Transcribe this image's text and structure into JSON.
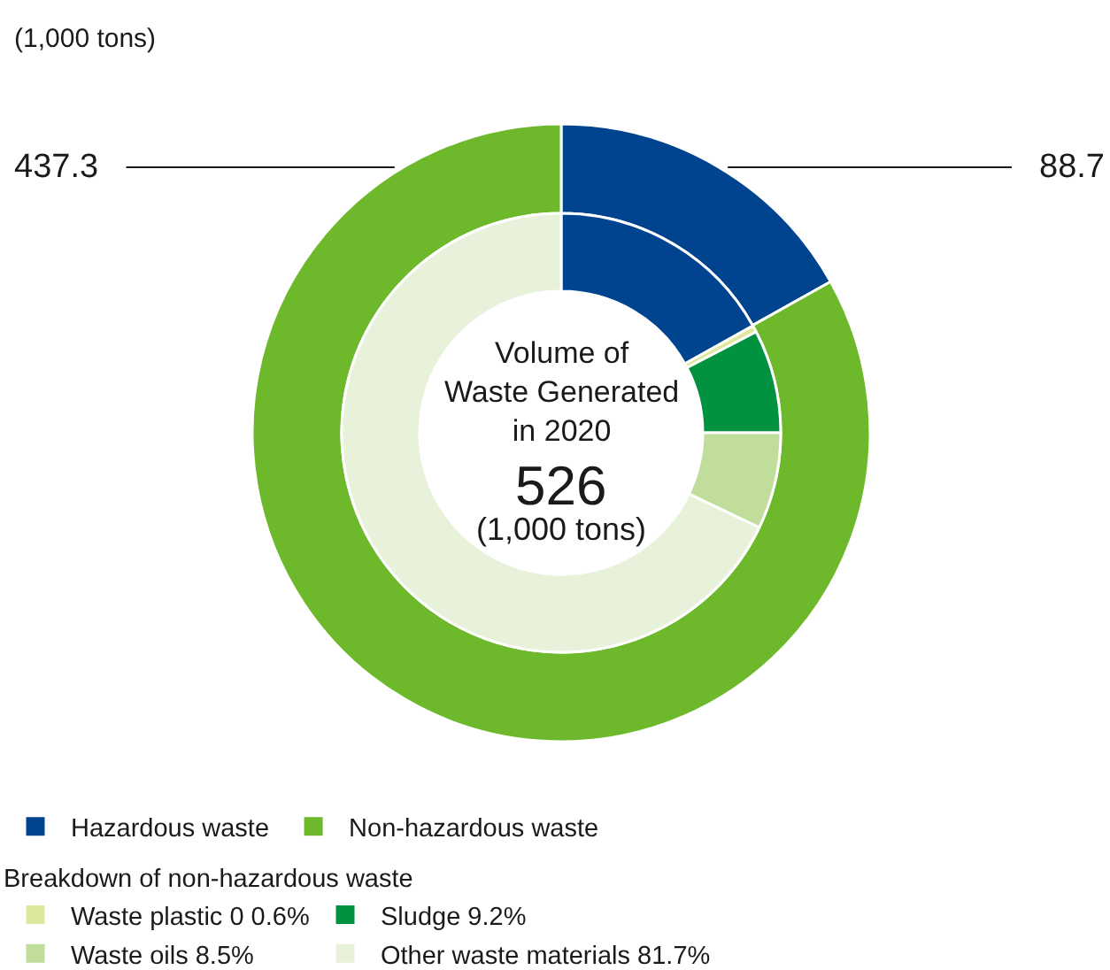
{
  "chart_data": {
    "type": "donut",
    "title": "(1,000 tons)",
    "categories": [
      "Hazardous waste",
      "Non-hazardous waste",
      "Waste plastic 0 0.6%",
      "Sludge 9.2%",
      "Waste oils 8.5%",
      "Other waste materials 81.7%"
    ],
    "colors": [
      "#00438e",
      "#6eb92b",
      "#dde89c",
      "#00923f",
      "#c1dd9b",
      "#e8f2db"
    ],
    "series": [
      {
        "values": [
          88.7,
          437.3,
          null,
          null,
          null,
          null
        ],
        "value_labels": [
          "88.7",
          "437.3",
          null,
          null,
          null,
          null
        ]
      },
      {
        "values": [
          16.9,
          null,
          0.5,
          7.6,
          7.1,
          67.9
        ]
      }
    ],
    "legend": "bottom left",
    "legend_title": "Breakdown of non-hazardous waste",
    "annotations": [
      "Volume of\nWaste Generated\nin 2020",
      "526",
      "(1,000 tons)"
    ]
  }
}
